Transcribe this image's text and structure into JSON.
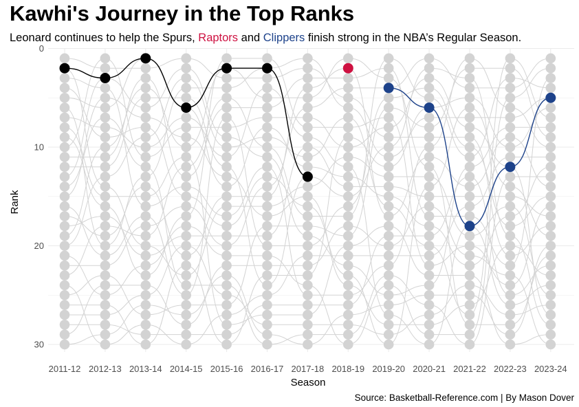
{
  "title": "Kawhi's Journey in the Top Ranks",
  "subtitle": {
    "before": "Leonard continues to help the Spurs, ",
    "raptors": "Raptors",
    "middle": " and ",
    "clippers": "Clippers",
    "after": " finish strong in the NBA’s Regular Season."
  },
  "caption": "Source: Basketball-Reference.com | By Mason Dover",
  "colors": {
    "spurs": "#000000",
    "raptors": "#ce1141",
    "clippers": "#1d428a",
    "background_points": "#d3d3d3",
    "background_lines": "#d3d3d3",
    "grid": "#ebebeb"
  },
  "chart_data": {
    "type": "line",
    "chart_style": "bump chart",
    "xlabel": "Season",
    "ylabel": "Rank",
    "x": [
      "2011-12",
      "2012-13",
      "2013-14",
      "2014-15",
      "2015-16",
      "2016-17",
      "2017-18",
      "2018-19",
      "2019-20",
      "2020-21",
      "2021-22",
      "2022-23",
      "2023-24"
    ],
    "ylim": [
      0,
      30
    ],
    "y_reversed": true,
    "yticks": [
      0,
      10,
      20,
      30
    ],
    "grid": true,
    "background_ranks": "every season shows ranks 1-30 in light grey",
    "series": [
      {
        "team": "Spurs",
        "seasons": [
          "2011-12",
          "2012-13",
          "2013-14",
          "2014-15",
          "2015-16",
          "2016-17",
          "2017-18"
        ],
        "ranks": [
          2,
          3,
          1,
          6,
          2,
          2,
          13
        ]
      },
      {
        "team": "Raptors",
        "seasons": [
          "2018-19"
        ],
        "ranks": [
          2
        ]
      },
      {
        "team": "Clippers",
        "seasons": [
          "2019-20",
          "2020-21",
          "2021-22",
          "2022-23",
          "2023-24"
        ],
        "ranks": [
          4,
          6,
          18,
          12,
          5
        ]
      }
    ]
  }
}
